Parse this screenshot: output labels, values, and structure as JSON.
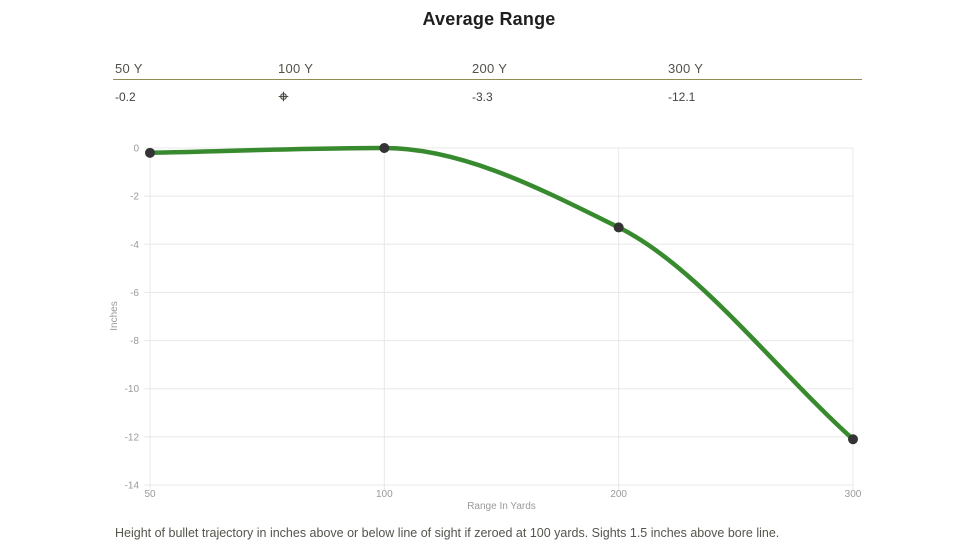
{
  "title": "Average Range",
  "range_table": {
    "columns": [
      {
        "label": "50 Y",
        "value": "-0.2"
      },
      {
        "label": "100 Y",
        "value": "",
        "icon": "scope-crosshair-icon"
      },
      {
        "label": "200 Y",
        "value": "-3.3"
      },
      {
        "label": "300 Y",
        "value": "-12.1"
      }
    ]
  },
  "chart_data": {
    "type": "line",
    "categories": [
      "50",
      "100",
      "200",
      "300"
    ],
    "x_values_yards": [
      50,
      100,
      200,
      300
    ],
    "values": [
      -0.2,
      0,
      -3.3,
      -12.1
    ],
    "xlabel": "Range In Yards",
    "ylabel": "Inches",
    "ylim": [
      -14,
      0
    ],
    "y_ticks": [
      0,
      -2,
      -4,
      -6,
      -8,
      -10,
      -12,
      -14
    ],
    "x_axis_spacing": "categorical-even",
    "grid": true,
    "legend": "none",
    "line_color": "#378b2e",
    "point_color": "#343434",
    "grid_color": "#e8e8e8",
    "tick_label_color": "#9a9a9a"
  },
  "caption": "Height of bullet trajectory in inches above or below line of sight if zeroed at 100 yards. Sights 1.5 inches above bore line.",
  "colors": {
    "accent_olive": "#8e8c52",
    "title_text": "#1e1e1e",
    "header_text": "#53524a",
    "value_text": "#45443e",
    "caption_text": "#54554b"
  }
}
